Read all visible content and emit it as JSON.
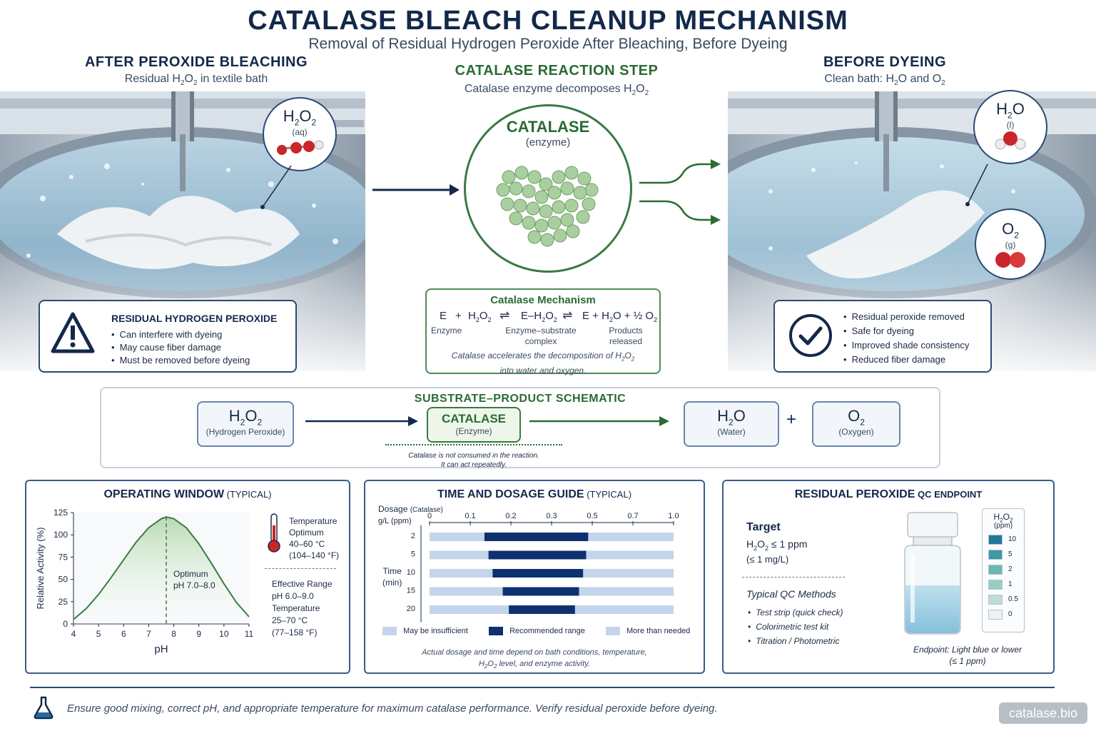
{
  "title": "CATALASE BLEACH CLEANUP MECHANISM",
  "subtitle": "Removal of Residual Hydrogen Peroxide After Bleaching, Before Dyeing",
  "left": {
    "heading": "AFTER PEROXIDE BLEACHING",
    "sub_pre": "Residual H",
    "sub_2": "2",
    "sub_o": "O",
    "sub_2b": "2",
    "sub_post": " in textile bath",
    "bubble_label": "(aq)",
    "warning_title": "RESIDUAL HYDROGEN PEROXIDE",
    "warning_items": [
      "Can interfere with dyeing",
      "May cause fiber damage",
      "Must be removed before dyeing"
    ]
  },
  "center": {
    "heading": "CATALASE REACTION STEP",
    "sub": "Catalase enzyme decomposes H",
    "enzyme_name": "CATALASE",
    "enzyme_sub": "(enzyme)",
    "mech_title": "Catalase Mechanism",
    "mech_e": "E",
    "mech_plus": "+",
    "mech_arrow": "⇌",
    "mech_es": "E–H",
    "mech_products": "E + H",
    "mech_half": " + ½ O",
    "lbl_enzyme": "Enzyme",
    "lbl_complex_1": "Enzyme–substrate",
    "lbl_complex_2": "complex",
    "lbl_products_1": "Products",
    "lbl_products_2": "released",
    "note_1": "Catalase accelerates the decomposition of H",
    "note_2": "into water and oxygen."
  },
  "right": {
    "heading": "BEFORE DYEING",
    "sub": "Clean bath: H",
    "sub_and": "O and O",
    "water_label": "(l)",
    "oxygen_label": "(g)",
    "check_items": [
      "Residual peroxide removed",
      "Safe for dyeing",
      "Improved shade consistency",
      "Reduced fiber damage"
    ]
  },
  "schematic": {
    "title": "SUBSTRATE–PRODUCT SCHEMATIC",
    "h2o2_label": "(Hydrogen Peroxide)",
    "catalase": "CATALASE",
    "catalase_label": "(Enzyme)",
    "water_label": "(Water)",
    "oxygen_label": "(Oxygen)",
    "plus": "+",
    "note_1": "Catalase is not consumed in the reaction.",
    "note_2": "It can act repeatedly."
  },
  "chem": {
    "H": "H",
    "O": "O",
    "two": "2"
  },
  "operating": {
    "title_bold": "OPERATING WINDOW",
    "title_small": " (TYPICAL)",
    "optimum_1": "Optimum",
    "optimum_2": "pH 7.0–8.0",
    "temp_title": "Temperature",
    "temp_opt": "Optimum",
    "temp_range_c": "40–60 °C",
    "temp_range_f": "(104–140 °F)",
    "eff_title": "Effective Range",
    "eff_ph": "pH 6.0–9.0",
    "eff_temp": "Temperature",
    "eff_c": "25–70 °C",
    "eff_f": "(77–158 °F)"
  },
  "chart_data": {
    "type": "line",
    "title": "",
    "xlabel": "pH",
    "ylabel": "Relative Activity (%)",
    "x_ticks": [
      "4",
      "5",
      "6",
      "7",
      "8",
      "9",
      "10",
      "11"
    ],
    "y_ticks": [
      "0",
      "25",
      "50",
      "75",
      "100",
      "125"
    ],
    "xlim": [
      4,
      11
    ],
    "ylim": [
      0,
      125
    ],
    "optimum_x": 7.7,
    "x": [
      4,
      4.5,
      5,
      5.5,
      6,
      6.5,
      7,
      7.5,
      7.7,
      8,
      8.5,
      9,
      9.5,
      10,
      10.5,
      11
    ],
    "y": [
      5,
      17,
      33,
      52,
      72,
      92,
      108,
      118,
      120,
      118,
      108,
      90,
      68,
      45,
      24,
      8
    ]
  },
  "dosage": {
    "title_bold": "TIME AND DOSAGE GUIDE",
    "title_small": " (TYPICAL)",
    "dosage_label": "Dosage",
    "dosage_sub": "(Catalase)",
    "unit": "g/L (ppm)",
    "time_label": "Time",
    "time_unit": "(min)",
    "dose_ticks": [
      "0",
      "0.1",
      "0.2",
      "0.3",
      "0.5",
      "0.7",
      "1.0"
    ],
    "rows": [
      {
        "time": "2",
        "start": 0.135,
        "end": 0.48
      },
      {
        "time": "5",
        "start": 0.145,
        "end": 0.47
      },
      {
        "time": "10",
        "start": 0.155,
        "end": 0.455
      },
      {
        "time": "15",
        "start": 0.18,
        "end": 0.435
      },
      {
        "time": "20",
        "start": 0.195,
        "end": 0.415
      }
    ],
    "legend": [
      "May be insufficient",
      "Recommended range",
      "More than needed"
    ],
    "note_1": "Actual dosage and time depend on bath conditions, temperature,",
    "note_2": " level, and enzyme activity.",
    "colors": {
      "light": "#c3d5ea",
      "dark": "#0d3070"
    }
  },
  "qc": {
    "title_bold": "RESIDUAL  PEROXIDE",
    "title_small": " QC ENDPOINT",
    "target": "Target",
    "target_val": " ≤ 1 ppm",
    "target_mg": "(≤ 1 mg/L)",
    "methods_title": "Typical QC Methods",
    "methods": [
      "Test strip (quick check)",
      "Colorimetric test kit",
      "Titration / Photometric"
    ],
    "strip_unit": "(ppm)",
    "strip_values": [
      "10",
      "5",
      "2",
      "1",
      "0.5",
      "0"
    ],
    "strip_colors": [
      "#1f7a99",
      "#3d9aa8",
      "#6bb7b3",
      "#98cdc6",
      "#bfdcd8",
      "#eef2f2"
    ],
    "endpoint_1": "Endpoint: Light blue or lower",
    "endpoint_2": "(≤ 1 ppm)"
  },
  "footer": {
    "text": "Ensure good mixing, correct pH, and appropriate temperature for maximum catalase performance.  Verify residual peroxide before dyeing.",
    "brand": "catalase.bio"
  }
}
